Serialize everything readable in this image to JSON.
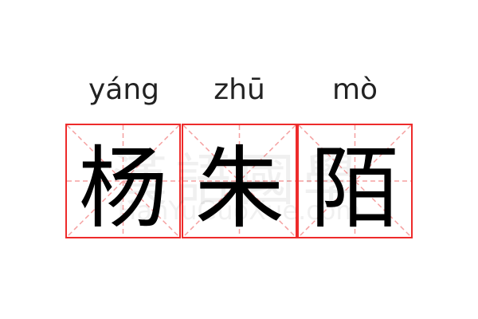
{
  "characters": [
    {
      "pinyin": "yáng",
      "hanzi": "杨"
    },
    {
      "pinyin": "zhū",
      "hanzi": "朱"
    },
    {
      "pinyin": "mò",
      "hanzi": "陌"
    }
  ],
  "watermark": {
    "text": "漢語國學",
    "url": "HanYuGuoXue.com"
  },
  "colors": {
    "grid_border": "#ee2b2b",
    "grid_guides": "#f5a0a0"
  }
}
